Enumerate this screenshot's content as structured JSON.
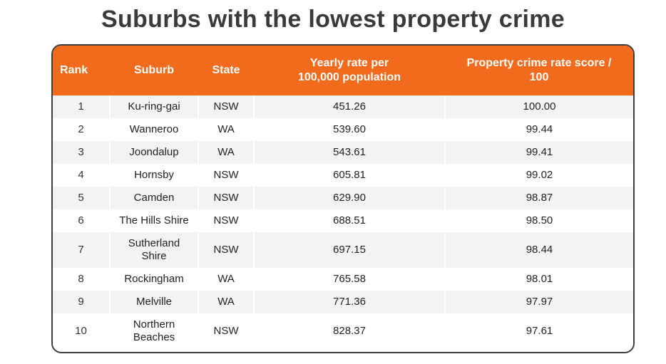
{
  "title": "Suburbs with the lowest property crime",
  "columns": {
    "rank": "Rank",
    "suburb": "Suburb",
    "state": "State",
    "rate_line1": "Yearly rate per",
    "rate_line2": "100,000 population",
    "score_line1": "Property crime rate score /",
    "score_line2": "100"
  },
  "rows": [
    {
      "rank": "1",
      "suburb_l1": "Ku-ring-gai",
      "suburb_l2": "",
      "state": "NSW",
      "rate": "451.26",
      "score": "100.00"
    },
    {
      "rank": "2",
      "suburb_l1": "Wanneroo",
      "suburb_l2": "",
      "state": "WA",
      "rate": "539.60",
      "score": "99.44"
    },
    {
      "rank": "3",
      "suburb_l1": "Joondalup",
      "suburb_l2": "",
      "state": "WA",
      "rate": "543.61",
      "score": "99.41"
    },
    {
      "rank": "4",
      "suburb_l1": "Hornsby",
      "suburb_l2": "",
      "state": "NSW",
      "rate": "605.81",
      "score": "99.02"
    },
    {
      "rank": "5",
      "suburb_l1": "Camden",
      "suburb_l2": "",
      "state": "NSW",
      "rate": "629.90",
      "score": "98.87"
    },
    {
      "rank": "6",
      "suburb_l1": "The Hills Shire",
      "suburb_l2": "",
      "state": "NSW",
      "rate": "688.51",
      "score": "98.50"
    },
    {
      "rank": "7",
      "suburb_l1": "Sutherland",
      "suburb_l2": "Shire",
      "state": "NSW",
      "rate": "697.15",
      "score": "98.44"
    },
    {
      "rank": "8",
      "suburb_l1": "Rockingham",
      "suburb_l2": "",
      "state": "WA",
      "rate": "765.58",
      "score": "98.01"
    },
    {
      "rank": "9",
      "suburb_l1": "Melville",
      "suburb_l2": "",
      "state": "WA",
      "rate": "771.36",
      "score": "97.97"
    },
    {
      "rank": "10",
      "suburb_l1": "Northern",
      "suburb_l2": "Beaches",
      "state": "NSW",
      "rate": "828.37",
      "score": "97.61"
    }
  ],
  "colors": {
    "header_bg": "#f26a1b",
    "header_text": "#ffffff",
    "row_alt": "#f3f3f3",
    "border": "#3d3d3d"
  }
}
